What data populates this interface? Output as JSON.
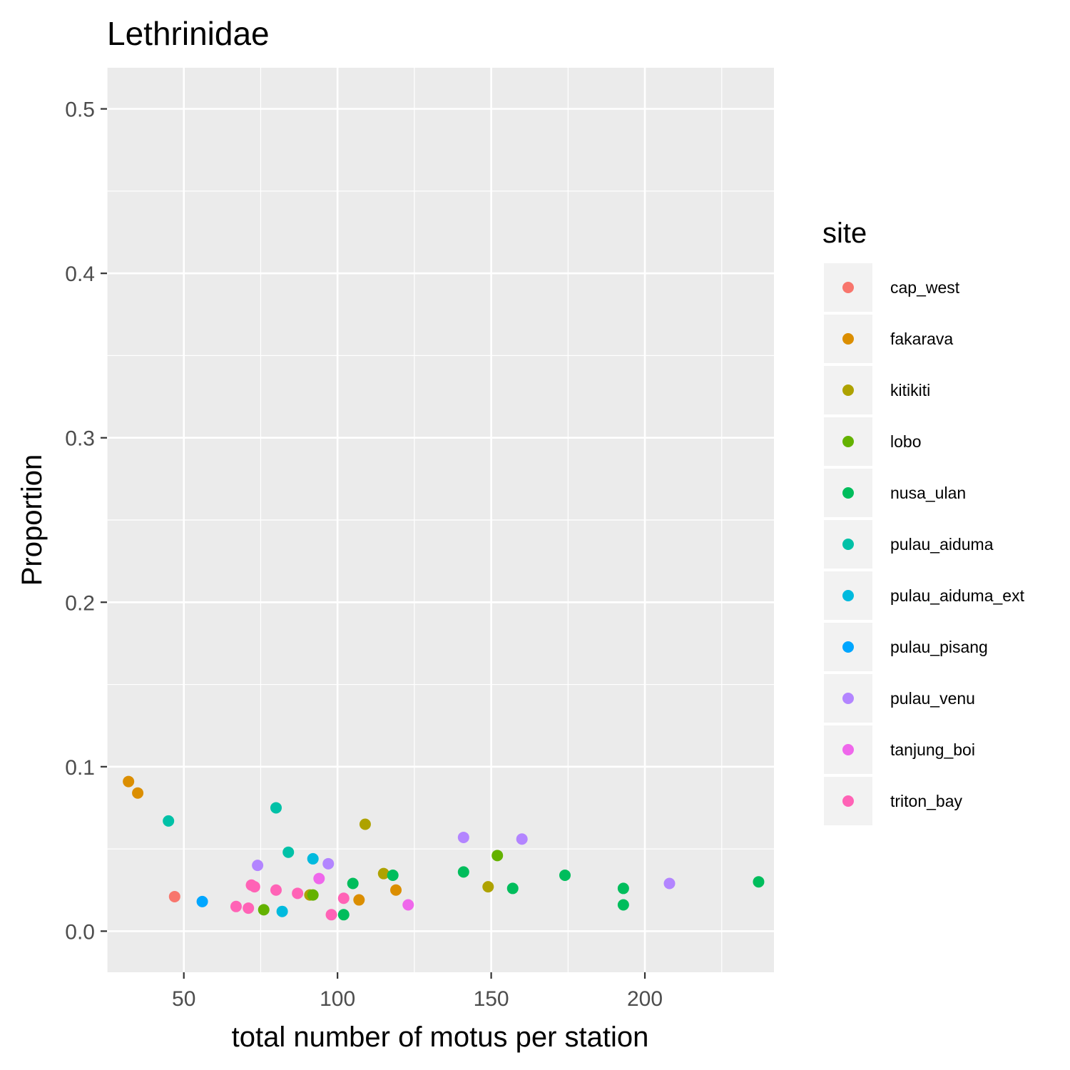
{
  "chart_data": {
    "type": "scatter",
    "title": "Lethrinidae",
    "xlabel": "total number of motus per station",
    "ylabel": "Proportion",
    "xlim": [
      25,
      242
    ],
    "ylim": [
      -0.025,
      0.525
    ],
    "x_ticks": [
      50,
      100,
      150,
      200
    ],
    "x_tick_labels": [
      "50",
      "100",
      "150",
      "200"
    ],
    "x_minor_ticks": [
      25,
      75,
      125,
      175,
      225
    ],
    "y_ticks": [
      0.0,
      0.1,
      0.2,
      0.3,
      0.4,
      0.5
    ],
    "y_tick_labels": [
      "0.0",
      "0.1",
      "0.2",
      "0.3",
      "0.4",
      "0.5"
    ],
    "y_minor_ticks": [
      0.05,
      0.15,
      0.25,
      0.35,
      0.45
    ],
    "grid": true,
    "legend": {
      "title": "site",
      "position": "right"
    },
    "series": [
      {
        "name": "cap_west",
        "color": "#F8766D",
        "points": [
          [
            47,
            0.021
          ]
        ]
      },
      {
        "name": "fakarava",
        "color": "#DB8E00",
        "points": [
          [
            32,
            0.091
          ],
          [
            35,
            0.084
          ],
          [
            107,
            0.019
          ],
          [
            119,
            0.025
          ]
        ]
      },
      {
        "name": "kitikiti",
        "color": "#AEA200",
        "points": [
          [
            91,
            0.022
          ],
          [
            109,
            0.065
          ],
          [
            115,
            0.035
          ],
          [
            149,
            0.027
          ]
        ]
      },
      {
        "name": "lobo",
        "color": "#64B200",
        "points": [
          [
            76,
            0.013
          ],
          [
            92,
            0.022
          ],
          [
            152,
            0.046
          ]
        ]
      },
      {
        "name": "nusa_ulan",
        "color": "#00BD5C",
        "points": [
          [
            102,
            0.01
          ],
          [
            105,
            0.029
          ],
          [
            118,
            0.034
          ],
          [
            141,
            0.036
          ],
          [
            157,
            0.026
          ],
          [
            174,
            0.034
          ],
          [
            193,
            0.026
          ],
          [
            193,
            0.016
          ],
          [
            237,
            0.03
          ]
        ]
      },
      {
        "name": "pulau_aiduma",
        "color": "#00C1A7",
        "points": [
          [
            45,
            0.067
          ],
          [
            80,
            0.075
          ],
          [
            84,
            0.048
          ]
        ]
      },
      {
        "name": "pulau_aiduma_ext",
        "color": "#00BADE",
        "points": [
          [
            82,
            0.012
          ],
          [
            92,
            0.044
          ]
        ]
      },
      {
        "name": "pulau_pisang",
        "color": "#00A6FF",
        "points": [
          [
            56,
            0.018
          ]
        ]
      },
      {
        "name": "pulau_venu",
        "color": "#B385FF",
        "points": [
          [
            74,
            0.04
          ],
          [
            97,
            0.041
          ],
          [
            141,
            0.057
          ],
          [
            160,
            0.056
          ],
          [
            208,
            0.029
          ]
        ]
      },
      {
        "name": "tanjung_boi",
        "color": "#EF67EB",
        "points": [
          [
            94,
            0.032
          ],
          [
            123,
            0.016
          ]
        ]
      },
      {
        "name": "triton_bay",
        "color": "#FF63B6",
        "points": [
          [
            67,
            0.015
          ],
          [
            71,
            0.014
          ],
          [
            72,
            0.028
          ],
          [
            73,
            0.027
          ],
          [
            80,
            0.025
          ],
          [
            87,
            0.023
          ],
          [
            98,
            0.01
          ],
          [
            102,
            0.02
          ]
        ]
      }
    ]
  }
}
